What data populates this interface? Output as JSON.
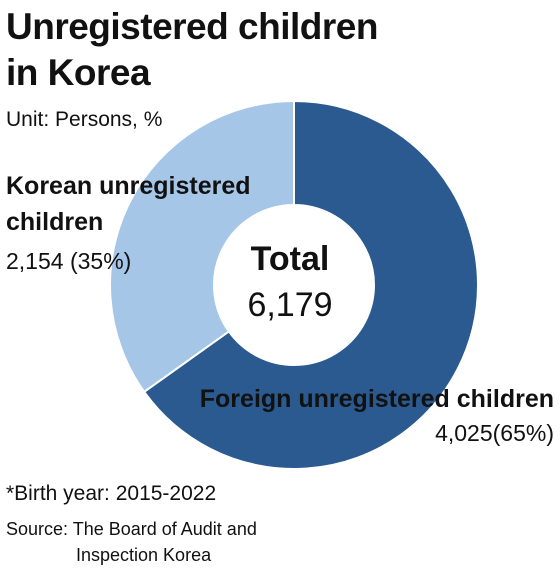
{
  "title_line1": "Unregistered children",
  "title_line2": "in Korea",
  "unit": "Unit: Persons, %",
  "center": {
    "label": "Total",
    "value": "6,179"
  },
  "note": "*Birth year: 2015-2022",
  "source_line1": "Source: The Board of Audit and",
  "source_line2": "Inspection Korea",
  "chart_data": {
    "type": "pie",
    "title": "Unregistered children in Korea",
    "total": 6179,
    "slices": [
      {
        "name": "Foreign unregistered children",
        "value": 4025,
        "percent": 65,
        "value_label": "4,025(65%)",
        "color": "#2a5a8f"
      },
      {
        "name": "Korean unregistered children",
        "value": 2154,
        "percent": 35,
        "value_label": "2,154 (35%)",
        "color": "#a6c6e8"
      }
    ]
  }
}
